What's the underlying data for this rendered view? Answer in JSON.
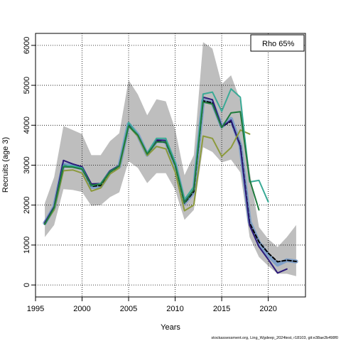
{
  "chart_data": {
    "type": "line",
    "xlabel": "Years",
    "ylabel": "Recruits (age 3)",
    "xlim": [
      1995,
      2024
    ],
    "ylim": [
      -300,
      6300
    ],
    "xticks": [
      1995,
      2000,
      2005,
      2010,
      2015,
      2020
    ],
    "yticks": [
      0,
      1000,
      2000,
      3000,
      4000,
      5000,
      6000
    ],
    "grid": true,
    "legend": {
      "text": "Rho 65%",
      "placement": "top-right"
    },
    "footnote": "stockassessment.org, Ling_Wgdeep_2024test, r18103, git:e38ae2b498f0",
    "band": {
      "x": [
        1996,
        1997,
        1998,
        1999,
        2000,
        2001,
        2002,
        2003,
        2004,
        2005,
        2006,
        2007,
        2008,
        2009,
        2010,
        2011,
        2012,
        2013,
        2014,
        2015,
        2016,
        2017,
        2018,
        2019,
        2020,
        2021,
        2022,
        2023
      ],
      "upper": [
        2050,
        2700,
        3980,
        3880,
        3780,
        3250,
        3250,
        3600,
        3800,
        5130,
        4770,
        4250,
        4650,
        4600,
        3900,
        2750,
        3250,
        6080,
        5920,
        5030,
        5250,
        4620,
        2850,
        1450,
        1150,
        950,
        1200,
        1500
      ],
      "lower": [
        1200,
        1500,
        2400,
        2380,
        2330,
        1980,
        2000,
        2200,
        2320,
        3100,
        2930,
        2550,
        2800,
        2800,
        2380,
        1630,
        1880,
        3450,
        3330,
        3070,
        3140,
        2820,
        1200,
        700,
        480,
        280,
        280,
        220
      ],
      "color": "#bebebe"
    },
    "series": [
      {
        "color": "#80a0c8",
        "width": 5.5,
        "dash": "",
        "x": [
          1996,
          1997,
          1998,
          1999,
          2000,
          2001,
          2002,
          2003,
          2004,
          2005,
          2006,
          2007,
          2008,
          2009,
          2010,
          2011,
          2012,
          2013,
          2014,
          2015,
          2016,
          2017,
          2018,
          2019,
          2020,
          2021,
          2022,
          2023
        ],
        "values": [
          1550,
          1950,
          3020,
          2980,
          2920,
          2450,
          2470,
          2820,
          2970,
          4030,
          3760,
          3260,
          3610,
          3590,
          3020,
          2050,
          2330,
          4620,
          4560,
          3970,
          4160,
          3500,
          1580,
          1060,
          750,
          510,
          620,
          590
        ]
      },
      {
        "color": "#000000",
        "width": 2,
        "dash": "5,3",
        "x": [
          1996,
          1997,
          1998,
          1999,
          2000,
          2001,
          2002,
          2003,
          2004,
          2005,
          2006,
          2007,
          2008,
          2009,
          2010,
          2011,
          2012,
          2013,
          2014,
          2015,
          2016,
          2017,
          2018,
          2019,
          2020,
          2021,
          2022,
          2023
        ],
        "values": [
          1550,
          1950,
          3000,
          2960,
          2920,
          2470,
          2490,
          2830,
          2970,
          4010,
          3740,
          3260,
          3600,
          3570,
          3000,
          2050,
          2340,
          4610,
          4560,
          3960,
          4100,
          3500,
          1550,
          1080,
          800,
          580,
          620,
          590
        ]
      },
      {
        "color": "#2c1a7a",
        "width": 2,
        "dash": "",
        "x": [
          1996,
          1997,
          1998,
          1999,
          2000,
          2001,
          2002,
          2003,
          2004,
          2005,
          2006,
          2007,
          2008,
          2009,
          2010,
          2011,
          2012,
          2013,
          2014,
          2015,
          2016,
          2017,
          2018,
          2019,
          2020,
          2021,
          2022
        ],
        "values": [
          1560,
          1960,
          3120,
          3030,
          2960,
          2530,
          2540,
          2860,
          2990,
          4020,
          3750,
          3290,
          3630,
          3620,
          3040,
          2080,
          2380,
          4700,
          4640,
          3960,
          4130,
          3470,
          1490,
          960,
          640,
          300,
          400
        ]
      },
      {
        "color": "#8c9a3c",
        "width": 2,
        "dash": "",
        "x": [
          1996,
          1997,
          1998,
          1999,
          2000,
          2001,
          2002,
          2003,
          2004,
          2005,
          2006,
          2007,
          2008,
          2009,
          2010,
          2011,
          2012,
          2013,
          2014,
          2015,
          2016,
          2017,
          2018
        ],
        "values": [
          1530,
          1880,
          2860,
          2880,
          2800,
          2350,
          2430,
          2780,
          2930,
          3980,
          3720,
          3240,
          3470,
          3410,
          2830,
          1860,
          2000,
          3730,
          3670,
          3220,
          3440,
          3880,
          3780
        ]
      },
      {
        "color": "#3aaa96",
        "width": 2,
        "dash": "",
        "x": [
          1996,
          1997,
          1998,
          1999,
          2000,
          2001,
          2002,
          2003,
          2004,
          2005,
          2006,
          2007,
          2008,
          2009,
          2010,
          2011,
          2012,
          2013,
          2014,
          2015,
          2016,
          2017,
          2018,
          2019,
          2020
        ],
        "values": [
          1520,
          1930,
          2990,
          2980,
          2930,
          2480,
          2540,
          2840,
          2980,
          4070,
          3760,
          3300,
          3670,
          3670,
          3060,
          2140,
          2460,
          4780,
          4830,
          4350,
          4910,
          4700,
          2580,
          2620,
          2080
        ]
      },
      {
        "color": "#1f7a3c",
        "width": 2,
        "dash": "",
        "x": [
          1996,
          1997,
          1998,
          1999,
          2000,
          2001,
          2002,
          2003,
          2004,
          2005,
          2006,
          2007,
          2008,
          2009,
          2010,
          2011,
          2012,
          2013,
          2014,
          2015,
          2016,
          2017,
          2018,
          2019
        ],
        "values": [
          1520,
          1940,
          2960,
          2950,
          2900,
          2500,
          2520,
          2830,
          2980,
          3980,
          3750,
          3280,
          3580,
          3580,
          3000,
          2060,
          2390,
          4580,
          4530,
          3940,
          4310,
          4340,
          2640,
          1880
        ]
      }
    ]
  }
}
